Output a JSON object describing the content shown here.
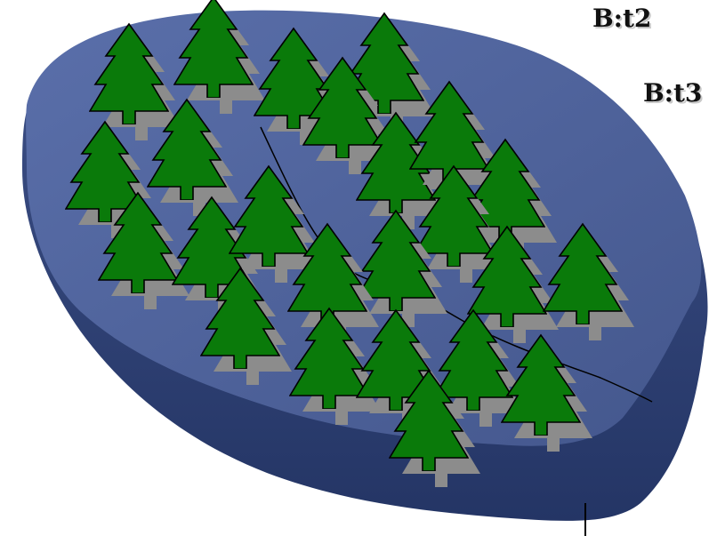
{
  "labels": {
    "b2": "B:t2",
    "b3": "B:t3"
  },
  "colors": {
    "island_top": "#4a5e96",
    "island_edge": "#354775",
    "tree_fill": "#0a7a0a",
    "tree_shadow": "#8c8c8c",
    "boundary": "#000000"
  }
}
